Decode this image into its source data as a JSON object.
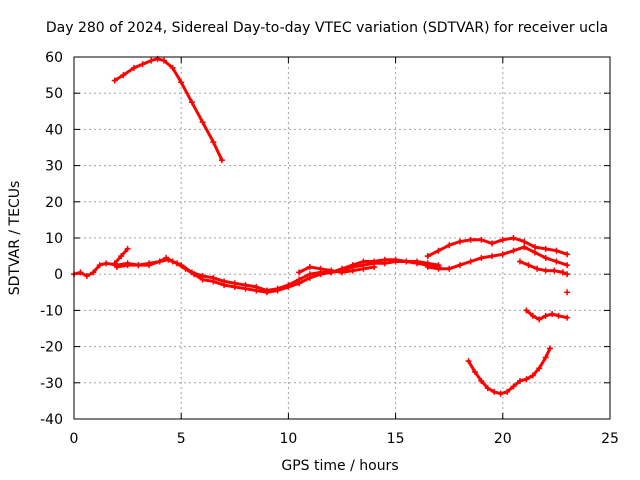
{
  "chart_data": {
    "type": "scatter",
    "title": "Day 280 of 2024, Sidereal Day-to-day VTEC variation (SDTVAR) for receiver ucla",
    "xlabel": "GPS time / hours",
    "ylabel": "SDTVAR / TECUs",
    "xlim": [
      0,
      25
    ],
    "ylim": [
      -40,
      60
    ],
    "xticks": [
      0,
      5,
      10,
      15,
      20,
      25
    ],
    "yticks": [
      -40,
      -30,
      -20,
      -10,
      0,
      10,
      20,
      30,
      40,
      50,
      60
    ],
    "grid": true,
    "color": "#ff0000",
    "series": [
      {
        "name": "arc-main-a",
        "x": [
          0,
          0.3,
          0.6,
          0.9,
          1.2,
          1.5,
          2.0,
          2.5,
          3.0,
          3.5,
          4.0,
          4.3,
          4.6,
          5.0,
          5.5,
          6.0,
          6.5,
          7.0,
          7.5,
          8.0,
          8.5,
          9.0,
          9.5,
          10.0,
          10.5,
          11.0,
          11.5,
          12.0,
          12.5,
          13.0,
          13.5,
          14.0,
          14.5,
          15.0,
          15.5,
          16.0,
          16.5,
          17.0
        ],
        "y": [
          0,
          0.5,
          -0.5,
          0.5,
          2.5,
          3.0,
          2.5,
          3.0,
          2.5,
          3.0,
          3.5,
          4.5,
          3.5,
          2.5,
          0.5,
          -0.5,
          -1.0,
          -2.0,
          -2.5,
          -3.0,
          -3.5,
          -4.5,
          -4.0,
          -3.0,
          -1.5,
          0.0,
          0.5,
          0.5,
          1.0,
          2.0,
          2.5,
          3.0,
          3.0,
          3.5,
          3.5,
          3.5,
          3.0,
          2.5
        ]
      },
      {
        "name": "arc-main-b",
        "x": [
          2.0,
          2.5,
          3.0,
          3.5,
          4.0,
          4.4,
          4.8,
          5.2,
          5.6,
          6.0,
          6.5,
          7.0,
          7.5,
          8.0,
          8.5,
          9.0,
          9.5,
          10.0,
          10.5,
          11.0,
          11.5,
          12.0,
          12.5,
          13.0,
          13.5,
          14.0,
          14.5,
          15.0,
          15.5,
          16.0,
          16.5,
          17.0
        ],
        "y": [
          2.0,
          2.5,
          2.5,
          2.5,
          3.5,
          4.0,
          3.0,
          1.5,
          0.0,
          -1.5,
          -2.0,
          -3.0,
          -3.5,
          -4.0,
          -4.5,
          -5.0,
          -4.5,
          -3.5,
          -2.5,
          -1.0,
          0.0,
          0.5,
          1.5,
          2.5,
          3.5,
          3.5,
          4.0,
          4.0,
          3.5,
          3.0,
          2.5,
          2.0
        ]
      },
      {
        "name": "arc-main-c",
        "x": [
          10.5,
          11.0,
          11.5,
          12.0,
          12.5,
          13.0,
          13.5,
          14.0
        ],
        "y": [
          0.5,
          2.0,
          1.5,
          1.0,
          0.5,
          1.0,
          1.5,
          2.0
        ]
      },
      {
        "name": "arc-spike",
        "x": [
          1.9,
          2.2,
          2.5
        ],
        "y": [
          3.0,
          5.0,
          7.0
        ]
      },
      {
        "name": "arc-rise-fall",
        "x": [
          1.9,
          2.3,
          2.8,
          3.2,
          3.6,
          3.9,
          4.2,
          4.6,
          5.0,
          5.5,
          6.0,
          6.5,
          6.9
        ],
        "y": [
          53.5,
          55.0,
          57.0,
          58.0,
          59.0,
          59.5,
          59.0,
          57.0,
          53.0,
          47.5,
          42.0,
          36.5,
          31.5
        ]
      },
      {
        "name": "arc-late-upper",
        "x": [
          16.5,
          17.0,
          17.5,
          18.0,
          18.5,
          19.0,
          19.5,
          20.0,
          20.5,
          21.0,
          21.5,
          22.0,
          22.5,
          23.0
        ],
        "y": [
          5.0,
          6.5,
          8.0,
          9.0,
          9.5,
          9.5,
          8.5,
          9.5,
          10.0,
          9.0,
          7.5,
          7.0,
          6.5,
          5.5
        ]
      },
      {
        "name": "arc-late-mid",
        "x": [
          16.5,
          17.0,
          17.5,
          18.0,
          18.5,
          19.0,
          19.5,
          20.0,
          20.5,
          21.0,
          21.5,
          22.0,
          22.5,
          23.0
        ],
        "y": [
          2.0,
          1.5,
          1.5,
          2.5,
          3.5,
          4.5,
          5.0,
          5.5,
          6.5,
          7.5,
          6.0,
          4.5,
          3.5,
          2.5
        ]
      },
      {
        "name": "arc-late-lower",
        "x": [
          20.8,
          21.2,
          21.6,
          22.0,
          22.4,
          22.8,
          23.0
        ],
        "y": [
          3.5,
          2.5,
          1.5,
          1.0,
          1.0,
          0.5,
          0.0
        ]
      },
      {
        "name": "arc-late-neg",
        "x": [
          21.1,
          21.4,
          21.7,
          22.0,
          22.3,
          22.6,
          23.0
        ],
        "y": [
          -10.0,
          -11.5,
          -12.5,
          -11.5,
          -11.0,
          -11.5,
          -12.0
        ]
      },
      {
        "name": "arc-dip",
        "x": [
          18.4,
          18.7,
          19.0,
          19.3,
          19.6,
          19.9,
          20.2,
          20.5,
          20.8,
          21.1,
          21.4,
          21.7,
          22.0,
          22.2
        ],
        "y": [
          -24.0,
          -27.0,
          -29.5,
          -31.5,
          -32.5,
          -33.0,
          -32.5,
          -31.0,
          -29.5,
          -29.0,
          -28.0,
          -26.0,
          -23.0,
          -20.5
        ]
      },
      {
        "name": "point-isolated",
        "x": [
          23.0
        ],
        "y": [
          -5.0
        ]
      }
    ]
  }
}
